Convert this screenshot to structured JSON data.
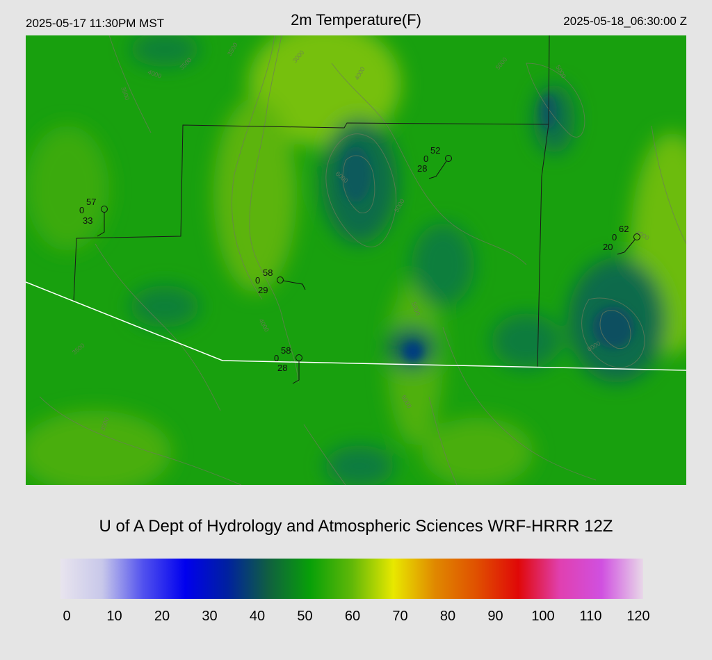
{
  "header": {
    "local_time": "2025-05-17 11:30PM MST",
    "title": "2m Temperature(F)",
    "utc_time": "2025-05-18_06:30:00 Z"
  },
  "contour_labels": [
    "3000",
    "3500",
    "4000",
    "5000",
    "6000",
    "8000"
  ],
  "stations": [
    {
      "temp": "57",
      "gust": "0",
      "dew": "33"
    },
    {
      "temp": "52",
      "gust": "0",
      "dew": "28"
    },
    {
      "temp": "62",
      "gust": "0",
      "dew": "20"
    },
    {
      "temp": "58",
      "gust": "0",
      "dew": "29"
    },
    {
      "temp": "58",
      "gust": "0",
      "dew": "28"
    }
  ],
  "credit": "U of A Dept of Hydrology and Atmospheric Sciences WRF-HRRR 12Z",
  "colorbar": {
    "min": 0,
    "max": 120,
    "ticks": [
      "0",
      "10",
      "20",
      "30",
      "40",
      "50",
      "60",
      "70",
      "80",
      "90",
      "100",
      "110",
      "120"
    ],
    "stops": [
      "#e8e4ee",
      "#c8c8ea",
      "#5050ee",
      "#0000ee",
      "#0020a0",
      "#106040",
      "#08a008",
      "#60b808",
      "#e8e800",
      "#e08800",
      "#e05000",
      "#e00808",
      "#e040b0",
      "#d050e0",
      "#e8d8e8"
    ]
  }
}
